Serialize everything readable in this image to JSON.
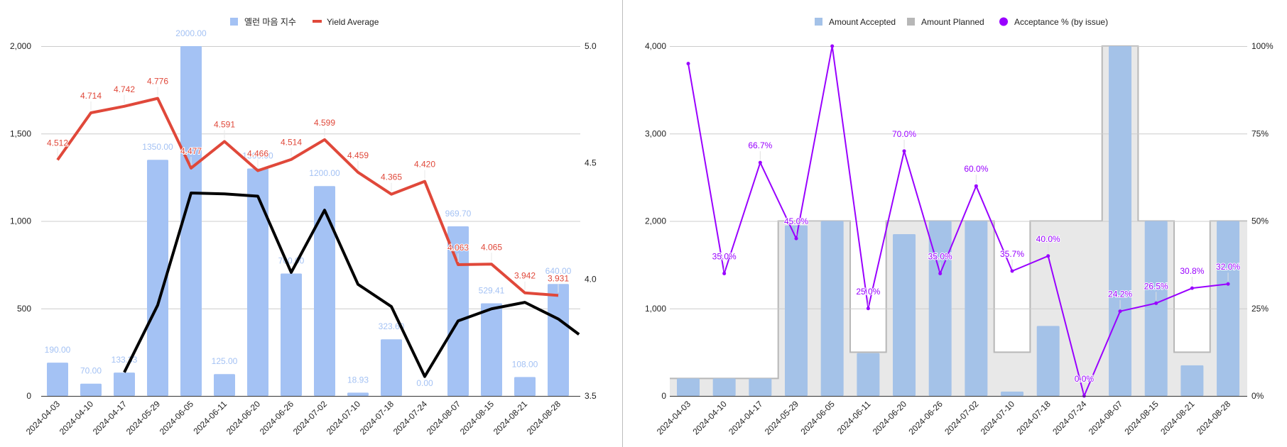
{
  "chart_data": [
    {
      "type": "bar",
      "title": "",
      "xlabel": "",
      "ylabel": "",
      "categories": [
        "2024-04-03",
        "2024-04-10",
        "2024-04-17",
        "2024-05-29",
        "2024-06-05",
        "2024-06-11",
        "2024-06-20",
        "2024-06-26",
        "2024-07-02",
        "2024-07-10",
        "2024-07-18",
        "2024-07-24",
        "2024-08-07",
        "2024-08-15",
        "2024-08-21",
        "2024-08-28"
      ],
      "ylim": [
        0,
        2000
      ],
      "y_ticks": [
        "0",
        "500",
        "1,000",
        "1,500",
        "2,000"
      ],
      "y2lim": [
        3.5,
        5.0
      ],
      "y2_ticks": [
        "3.5",
        "4.0",
        "4.5",
        "5.0"
      ],
      "grid": true,
      "legend_position": "top",
      "series": [
        {
          "name": "옐런 마음 지수",
          "type": "bar",
          "axis": "left",
          "color": "#a4c2f4",
          "values": [
            190,
            70,
            133.33,
            1350,
            2000,
            125,
            1300,
            700,
            1200,
            18.93,
            323.6,
            0,
            969.7,
            529.41,
            108,
            640
          ],
          "labels": [
            "190.00",
            "70.00",
            "133.33",
            "1350.00",
            "2000.00",
            "125.00",
            "1300.00",
            "700.00",
            "1200.00",
            "18.93",
            "323.60",
            "0.00",
            "969.70",
            "529.41",
            "108.00",
            "640.00"
          ]
        },
        {
          "name": "Yield Average",
          "type": "line",
          "axis": "right",
          "color": "#e0483a",
          "values": [
            4.512,
            4.714,
            4.742,
            4.776,
            4.477,
            4.591,
            4.466,
            4.514,
            4.599,
            4.459,
            4.365,
            4.42,
            4.063,
            4.065,
            3.942,
            3.931
          ],
          "labels": [
            "4.512",
            "4.714",
            "4.742",
            "4.776",
            "4.477",
            "4.591",
            "4.466",
            "4.514",
            "4.599",
            "4.459",
            "4.365",
            "4.420",
            "4.063",
            "4.065",
            "3.942",
            "3.931"
          ]
        },
        {
          "name": "",
          "type": "line",
          "axis": "left",
          "color": "#000000",
          "in_legend": false,
          "values": [
            null,
            null,
            135,
            519,
            1160,
            1155,
            1142,
            706,
            1062,
            638,
            511,
            111,
            429,
            498,
            535,
            440
          ],
          "extends_past_last": 352
        }
      ]
    },
    {
      "type": "bar",
      "title": "",
      "xlabel": "",
      "ylabel": "",
      "categories": [
        "2024-04-03",
        "2024-04-10",
        "2024-04-17",
        "2024-05-29",
        "2024-06-05",
        "2024-06-11",
        "2024-06-20",
        "2024-06-26",
        "2024-07-02",
        "2024-07-10",
        "2024-07-18",
        "2024-07-24",
        "2024-08-07",
        "2024-08-15",
        "2024-08-21",
        "2024-08-28"
      ],
      "ylim": [
        0,
        4000
      ],
      "y_ticks": [
        "0",
        "1,000",
        "2,000",
        "3,000",
        "4,000"
      ],
      "y2lim": [
        0,
        100
      ],
      "y2_ticks": [
        "0%",
        "25%",
        "50%",
        "75%",
        "100%"
      ],
      "grid": true,
      "legend_position": "top",
      "series": [
        {
          "name": "Amount Accepted",
          "type": "bar",
          "axis": "left",
          "color": "#a4c2e8",
          "values": [
            200,
            200,
            200,
            1950,
            2000,
            490,
            1850,
            2000,
            2000,
            50,
            800,
            0,
            4000,
            2000,
            350,
            2000
          ]
        },
        {
          "name": "Amount Planned",
          "type": "stepped-area",
          "axis": "left",
          "color": "#b7b7b7",
          "values": [
            200,
            200,
            200,
            2000,
            2000,
            500,
            2000,
            2000,
            2000,
            500,
            2000,
            2000,
            4000,
            2000,
            500,
            2000
          ]
        },
        {
          "name": "Acceptance % (by issue)",
          "type": "line",
          "axis": "right",
          "color": "#9900ff",
          "values": [
            95,
            35.0,
            66.7,
            45.0,
            100,
            25.0,
            70.0,
            35.0,
            60.0,
            35.7,
            40.0,
            0.0,
            24.2,
            26.5,
            30.8,
            32.0
          ],
          "labels": [
            "",
            "35.0%",
            "66.7%",
            "45.0%",
            "",
            "25.0%",
            "70.0%",
            "35.0%",
            "60.0%",
            "35.7%",
            "40.0%",
            "0.0%",
            "24.2%",
            "26.5%",
            "30.8%",
            "32.0%"
          ]
        }
      ]
    }
  ]
}
